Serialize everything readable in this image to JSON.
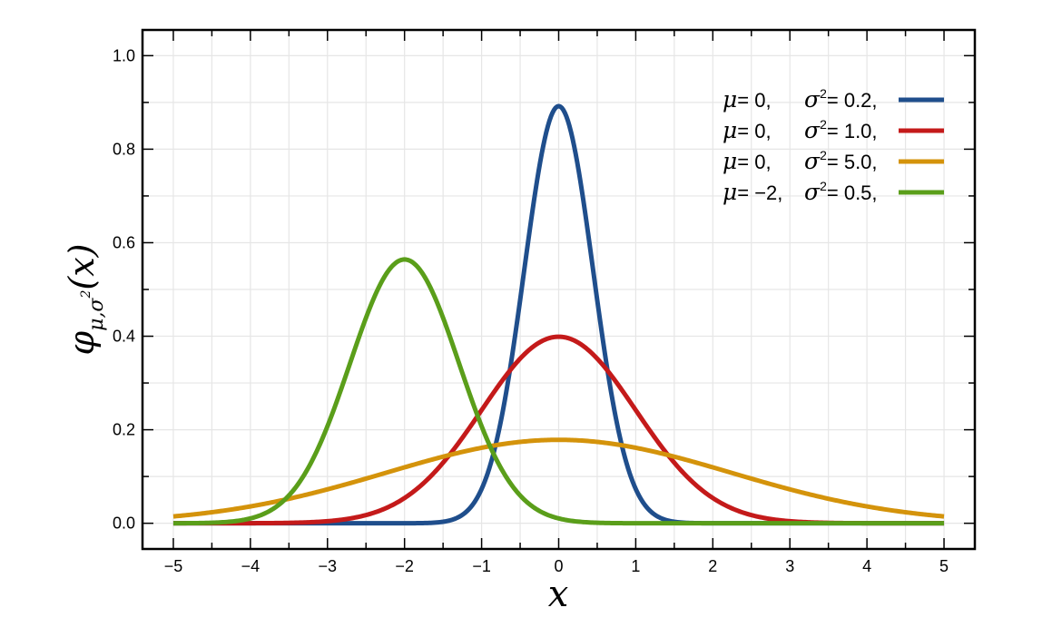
{
  "chart_data": {
    "type": "line",
    "xlabel": "x",
    "ylabel": {
      "main": "φ",
      "sub": "μ,σ",
      "sup": "2",
      "arg": "(x)"
    },
    "xlim": [
      -5.4,
      5.4
    ],
    "ylim": [
      -0.055,
      1.055
    ],
    "x_ticks": [
      -5,
      -4,
      -3,
      -2,
      -1,
      0,
      1,
      2,
      3,
      4,
      5
    ],
    "x_tick_labels": [
      "−5",
      "−4",
      "−3",
      "−2",
      "−1",
      "0",
      "1",
      "2",
      "3",
      "4",
      "5"
    ],
    "y_ticks": [
      0.0,
      0.2,
      0.4,
      0.6,
      0.8,
      1.0
    ],
    "y_tick_labels": [
      "0.0",
      "0.2",
      "0.4",
      "0.6",
      "0.8",
      "1.0"
    ],
    "grid": true,
    "legend_position": "top-right",
    "series": [
      {
        "mu": 0,
        "variance": 0.2,
        "color": "#1f4e8c",
        "legend": {
          "mu_label": "μ",
          "mu_value": "= 0,",
          "sigma_label": "σ",
          "sigma_sup": "2",
          "sigma_value": "= 0.2,"
        }
      },
      {
        "mu": 0,
        "variance": 1.0,
        "color": "#c41a1a",
        "legend": {
          "mu_label": "μ",
          "mu_value": "= 0,",
          "sigma_label": "σ",
          "sigma_sup": "2",
          "sigma_value": "= 1.0,"
        }
      },
      {
        "mu": 0,
        "variance": 5.0,
        "color": "#d4930b",
        "legend": {
          "mu_label": "μ",
          "mu_value": "= 0,",
          "sigma_label": "σ",
          "sigma_sup": "2",
          "sigma_value": "= 5.0,"
        }
      },
      {
        "mu": -2,
        "variance": 0.5,
        "color": "#5a9e1a",
        "legend": {
          "mu_label": "μ",
          "mu_value": "= −2,",
          "sigma_label": "σ",
          "sigma_sup": "2",
          "sigma_value": "= 0.5,"
        }
      }
    ]
  }
}
